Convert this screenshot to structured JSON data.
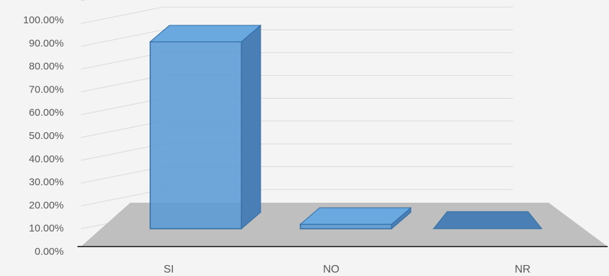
{
  "chart_data": {
    "type": "bar",
    "style": "3d-clustered-column",
    "categories": [
      "SI",
      "NO",
      "NR"
    ],
    "values": [
      0.82,
      0.02,
      0.0
    ],
    "ylim": [
      0,
      1
    ],
    "ytick_labels": [
      "0.00%",
      "10.00%",
      "20.00%",
      "30.00%",
      "40.00%",
      "50.00%",
      "60.00%",
      "70.00%",
      "80.00%",
      "90.00%",
      "100.00%"
    ],
    "grid": true,
    "legend": "none",
    "colors": {
      "bar_front": "#5b9bd5",
      "bar_top": "#6aa8e0",
      "bar_side": "#4a7fb5",
      "floor": "#bfbfbf",
      "background": "#f4f4f4",
      "axis_text": "#595959",
      "gridline": "#d9d9d9"
    }
  }
}
